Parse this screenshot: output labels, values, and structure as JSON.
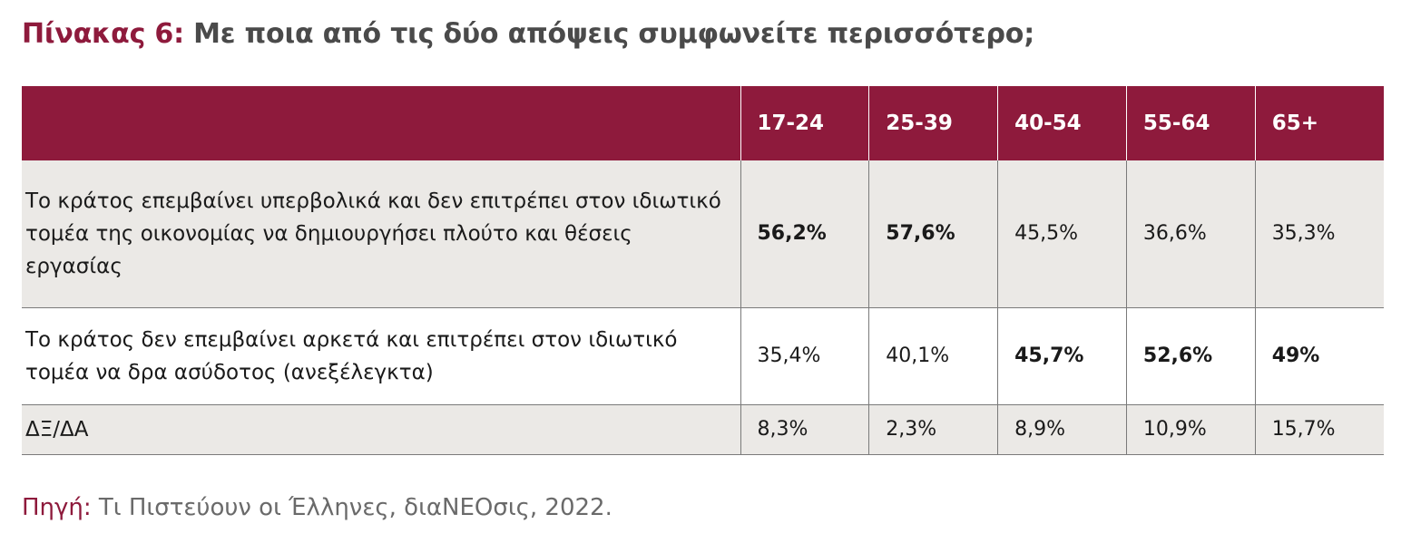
{
  "title": {
    "prefix": "Πίνακας 6:",
    "text": "Με ποια από τις δύο απόψεις συμφωνείτε περισσότερο;"
  },
  "table": {
    "columns": [
      "",
      "17-24",
      "25-39",
      "40-54",
      "55-64",
      "65+"
    ],
    "rows": [
      {
        "label": "Το κράτος επεμβαίνει υπερβολικά και δεν επιτρέπει στον ιδιωτικό τομέα της οικονομίας να δημιουργήσει πλούτο και θέσεις εργασίας",
        "values": [
          "56,2%",
          "57,6%",
          "45,5%",
          "36,6%",
          "35,3%"
        ]
      },
      {
        "label": "Το κράτος δεν επεμβαίνει αρκετά και επιτρέπει στον ιδιωτικό τομέα να δρα ασύδοτος (ανεξέλεγκτα)",
        "values": [
          "35,4%",
          "40,1%",
          "45,7%",
          "52,6%",
          "49%"
        ]
      },
      {
        "label": "ΔΞ/ΔΑ",
        "values": [
          "8,3%",
          "2,3%",
          "8,9%",
          "10,9%",
          "15,7%"
        ]
      }
    ]
  },
  "source": {
    "label": "Πηγή:",
    "text": "Τι Πιστεύουν οι Έλληνες, διαΝΕΟσις, 2022."
  },
  "colors": {
    "accent": "#8e1a3c",
    "shaded_row": "#ebe9e6",
    "title_text": "#4a4a4a",
    "source_text": "#6a6a6a"
  }
}
